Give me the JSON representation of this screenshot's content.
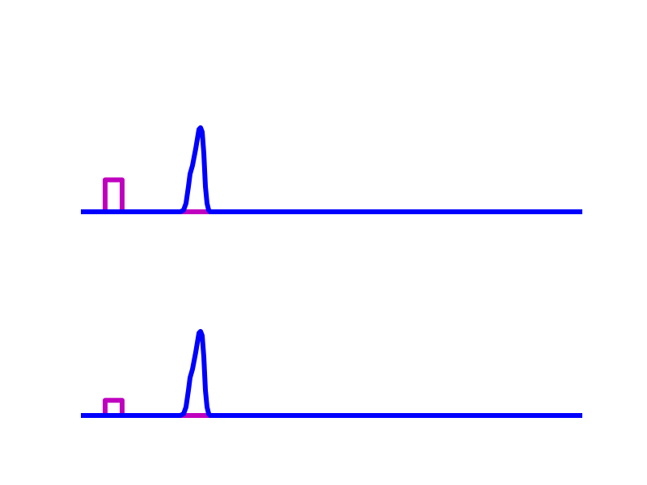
{
  "chart_data": [
    {
      "type": "line",
      "title": "",
      "xlabel": "",
      "ylabel": "",
      "grid": false,
      "axes_visible": false,
      "legend": "none",
      "xlim": [
        0,
        62
      ],
      "ylim": [
        0,
        1
      ],
      "series": [
        {
          "color": "#bf00bf",
          "x": [
            0,
            3,
            3,
            5.1,
            5.1,
            12.5,
            12.8,
            13.2,
            13.5,
            13.8,
            14.2,
            14.6,
            15,
            15.4,
            15.8,
            16.1,
            62
          ],
          "y": [
            0,
            0,
            0.38,
            0.38,
            0,
            0,
            0,
            0,
            0,
            0,
            0,
            0,
            0,
            0,
            0,
            0,
            0
          ]
        },
        {
          "color": "#0000ff",
          "x": [
            0,
            12.3,
            12.7,
            13,
            13.3,
            13.5,
            13.8,
            14.2,
            14.6,
            14.8,
            15,
            15.2,
            15.4,
            15.6,
            15.8,
            16,
            16.5,
            62
          ],
          "y": [
            0,
            0,
            0.02,
            0.1,
            0.3,
            0.45,
            0.55,
            0.75,
            0.98,
            1.0,
            0.95,
            0.7,
            0.3,
            0.1,
            0.02,
            0,
            0,
            0
          ]
        }
      ]
    },
    {
      "type": "line",
      "title": "",
      "xlabel": "",
      "ylabel": "",
      "grid": false,
      "axes_visible": false,
      "legend": "none",
      "xlim": [
        0,
        62
      ],
      "ylim": [
        0,
        1
      ],
      "series": [
        {
          "color": "#bf00bf",
          "x": [
            0,
            3,
            3,
            5.1,
            5.1,
            12.5,
            12.8,
            13.2,
            13.5,
            13.8,
            14.2,
            14.6,
            15,
            15.4,
            15.8,
            16.1,
            62
          ],
          "y": [
            0,
            0,
            0.18,
            0.18,
            0,
            0,
            0,
            0,
            0,
            0,
            0,
            0,
            0,
            0,
            0,
            0,
            0
          ]
        },
        {
          "color": "#0000ff",
          "x": [
            0,
            12.3,
            12.7,
            13,
            13.3,
            13.5,
            13.8,
            14.2,
            14.6,
            14.8,
            15,
            15.2,
            15.4,
            15.6,
            15.8,
            16,
            16.5,
            62
          ],
          "y": [
            0,
            0,
            0.02,
            0.1,
            0.3,
            0.45,
            0.55,
            0.75,
            0.98,
            1.0,
            0.95,
            0.7,
            0.3,
            0.1,
            0.02,
            0,
            0,
            0
          ]
        }
      ]
    }
  ]
}
